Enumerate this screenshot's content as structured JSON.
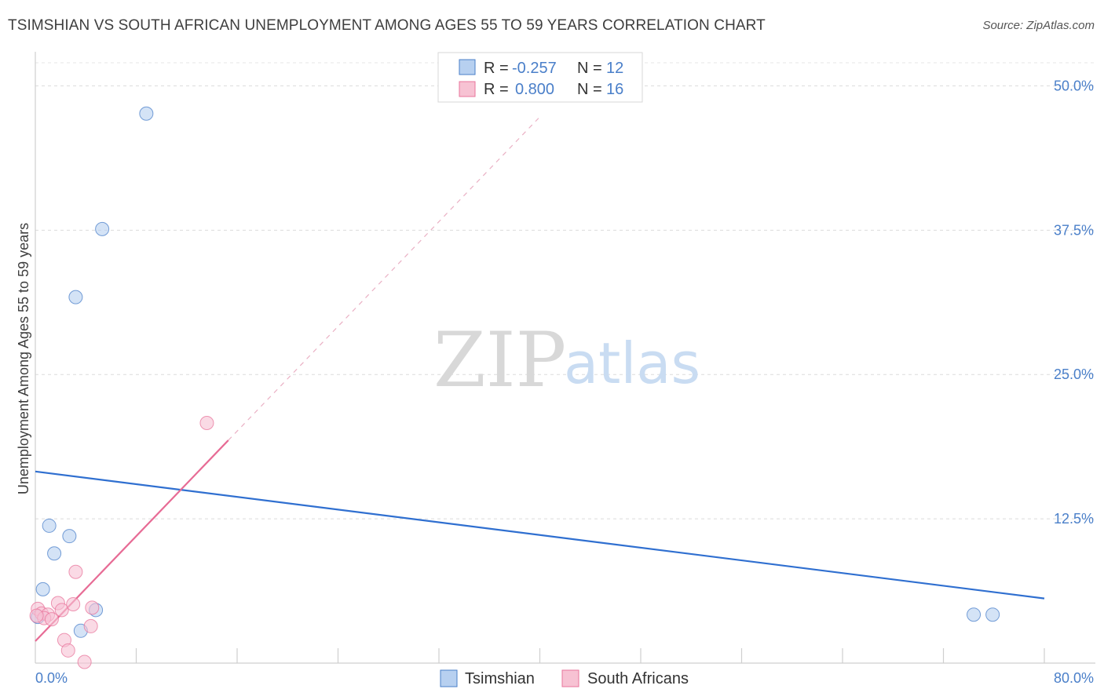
{
  "title": "TSIMSHIAN VS SOUTH AFRICAN UNEMPLOYMENT AMONG AGES 55 TO 59 YEARS CORRELATION CHART",
  "source": "Source: ZipAtlas.com",
  "watermark": {
    "zip": "ZIP",
    "atlas": "atlas"
  },
  "colors": {
    "blue": "#4a7fc9",
    "blue_fill": "#b7d0f0",
    "blue_line": "#2f6fd0",
    "pink": "#e8749b",
    "pink_fill": "#f7c2d3",
    "pink_line": "#e76b95"
  },
  "chart_data": {
    "type": "scatter",
    "title": "TSIMSHIAN VS SOUTH AFRICAN UNEMPLOYMENT AMONG AGES 55 TO 59 YEARS CORRELATION CHART",
    "xlabel": "",
    "ylabel": "Unemployment Among Ages 55 to 59 years",
    "xlim": [
      0,
      80
    ],
    "ylim": [
      0,
      52
    ],
    "x_tick_labels": [
      {
        "value": 0,
        "label": "0.0%"
      },
      {
        "value": 80,
        "label": "80.0%"
      }
    ],
    "y_tick_labels": [
      {
        "value": 12.5,
        "label": "12.5%"
      },
      {
        "value": 25,
        "label": "25.0%"
      },
      {
        "value": 37.5,
        "label": "37.5%"
      },
      {
        "value": 50,
        "label": "50.0%"
      }
    ],
    "x_minor_ticks": [
      8,
      16,
      24,
      32,
      40,
      48,
      56,
      64,
      72,
      80
    ],
    "grid": true,
    "series": [
      {
        "name": "Tsimshian",
        "color": "blue",
        "points": [
          [
            8.8,
            47.6
          ],
          [
            5.3,
            37.6
          ],
          [
            3.2,
            31.7
          ],
          [
            1.1,
            11.9
          ],
          [
            2.7,
            11.0
          ],
          [
            1.5,
            9.5
          ],
          [
            0.6,
            6.4
          ],
          [
            0.2,
            4.0
          ],
          [
            4.8,
            4.6
          ],
          [
            3.6,
            2.8
          ],
          [
            74.4,
            4.2
          ],
          [
            75.9,
            4.2
          ]
        ],
        "trend": {
          "x0": 0,
          "y0": 16.6,
          "x1": 80,
          "y1": 5.6,
          "dashed_extension": false
        }
      },
      {
        "name": "South Africans",
        "color": "pink",
        "points": [
          [
            13.6,
            20.8
          ],
          [
            3.2,
            7.9
          ],
          [
            1.8,
            5.2
          ],
          [
            2.1,
            4.6
          ],
          [
            3.0,
            5.1
          ],
          [
            0.2,
            4.7
          ],
          [
            0.5,
            4.3
          ],
          [
            1.0,
            4.2
          ],
          [
            0.7,
            3.9
          ],
          [
            1.3,
            3.8
          ],
          [
            4.5,
            4.8
          ],
          [
            4.4,
            3.2
          ],
          [
            2.3,
            2.0
          ],
          [
            2.6,
            1.1
          ],
          [
            3.9,
            0.1
          ],
          [
            0.1,
            4.1
          ]
        ],
        "trend": {
          "x0": 0,
          "y0": 1.9,
          "x1": 15.3,
          "y1": 19.3,
          "dashed_to_x": 39.9,
          "dashed_to_y": 47.2
        }
      }
    ]
  },
  "legend_stats": [
    {
      "r_label": "R =",
      "r_value": "-0.257",
      "n_label": "N =",
      "n_value": "12",
      "color": "blue"
    },
    {
      "r_label": "R =",
      "r_value": "0.800",
      "n_label": "N =",
      "n_value": "16",
      "color": "pink"
    }
  ],
  "bottom_legend": [
    {
      "label": "Tsimshian",
      "color": "blue"
    },
    {
      "label": "South Africans",
      "color": "pink"
    }
  ]
}
